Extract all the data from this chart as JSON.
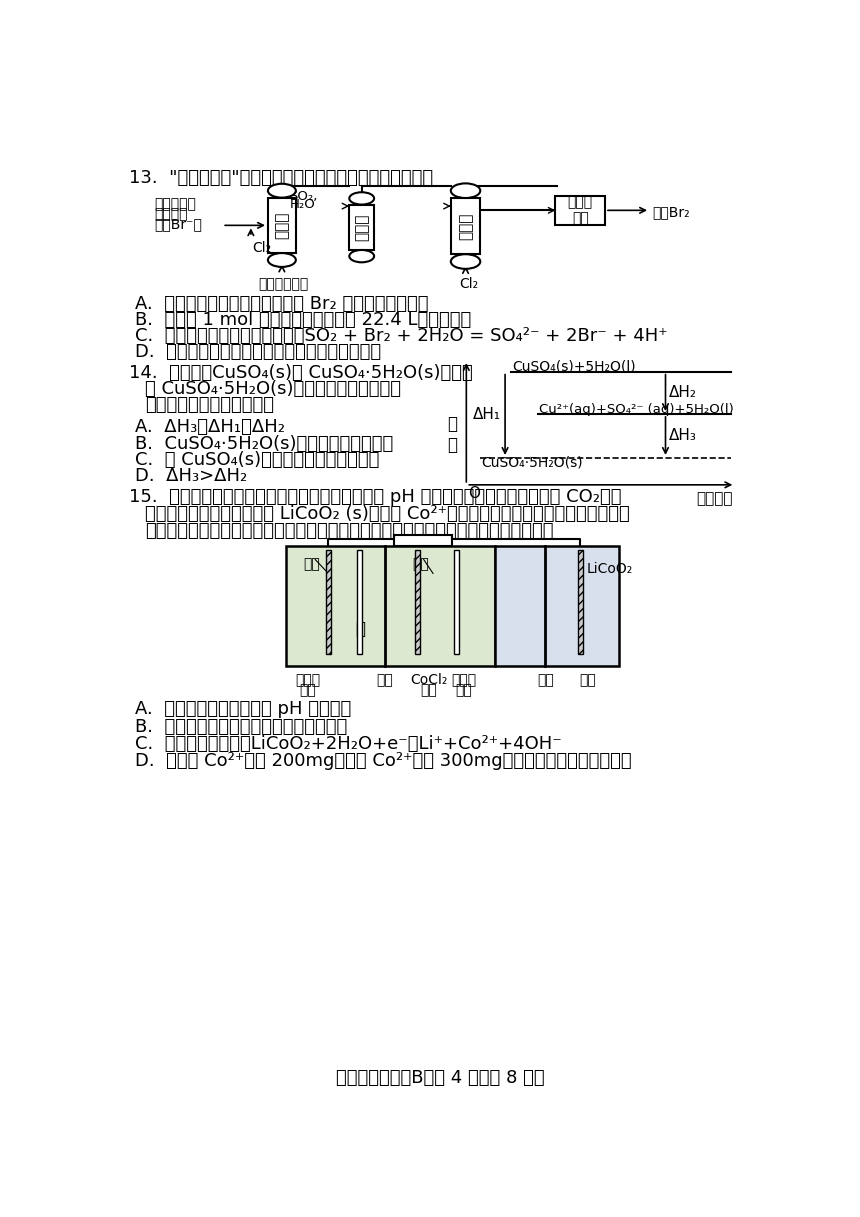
{
  "bg_color": "#ffffff",
  "text_color": "#1a1a1a",
  "page_title": "高一化学试题（B）第 4 页（共 8 页）",
  "q13_label": "13.",
  "q13_title": "“空气吹出法”海水提溴的工艺如图，下列说法错误的是",
  "q13_A": "A.  吹出塔中用空气和水蒸气吹出 Br₂ 利用了溴的挥发性",
  "q13_B": "B.  每提取 1 mol 溴，理论上消耗氯气 22.4 L（标况下）",
  "q13_C": "C.  吸收塔中发生的离子方程式：SO₂ + Br₂ + 2H₂O = SO₄²⁻ + 2Br⁻ + 4H⁺",
  "q13_D": "D.  精馏是利用溴与水沸点的差异进行分离的操作",
  "q14_label": "14.",
  "q14_t1": "常温下，CuSO₄(s)和 CuSO₄·5H₂O(s)溶于水",
  "q14_t2": "及 CuSO₄·5H₂O(s)受热分解的能量变化如",
  "q14_t3": "图所示。下列说法正确的是",
  "q14_A": "A.  ΔH₃＝ΔH₁−ΔH₂",
  "q14_B": "B.  CuSO₄·5H₂O(s)受热分解是放热反应",
  "q14_C": "C.  将 CuSO₄(s)溶于水会使溶液温度升高",
  "q14_D": "D.  ΔH₃>ΔH₂",
  "q15_label": "15.",
  "q15_t1": "设计如图装置回收金属钴。保持细菌所在环境 pH 稳定，借助其降解乙酸盐生成 CO₂，将",
  "q15_t2": "废旧锂离子电池的正极材料 LiCoO₂ (s)转化为 Co²⁺，工作时保持厌氧环境，并定时将乙室",
  "q15_t3": "溶液转移至甲室。已知电极材料均为石墨材质，右侧装置为原电池。下列说法正确的是",
  "q15_A": "A.  装置工作时，甲室溶液 pH 逐渐增大",
  "q15_B": "B.  装置工作一段时间后，乙室应补充盐酸",
  "q15_C": "C.  乙室电极反应式为LiCoO₂+2H₂O+e⁻＝Li⁺+Co²⁺+4OH⁻",
  "q15_D": "D.  若甲室 Co²⁺减少 200mg，乙室 Co²⁺增加 300mg，则此时已进行过溶液转移"
}
